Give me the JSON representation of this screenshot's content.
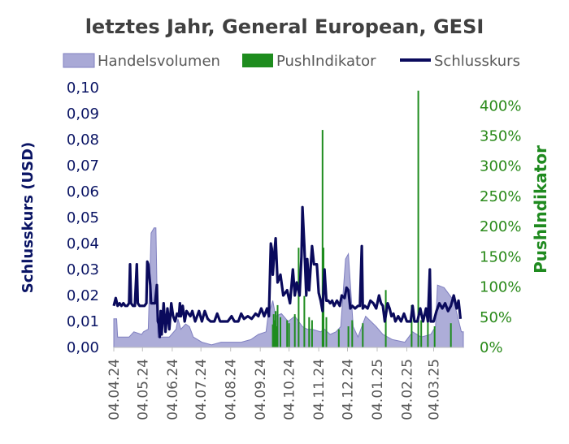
{
  "chart_data": {
    "type": "line",
    "title": "letztes Jahr, General European, GESI",
    "legend": {
      "placement": "top",
      "entries": [
        "Handelsvolumen",
        "PushIndikator",
        "Schlusskurs"
      ]
    },
    "colors": {
      "volume_fill": "#a9a9d6",
      "volume_stroke": "#8080c0",
      "push": "#1e8c1e",
      "close": "#0a0a5c",
      "left_axis_text": "#0a1464",
      "right_axis_text": "#2a8a1a"
    },
    "y_left": {
      "label": "Schlusskurs (USD)",
      "range": [
        0,
        0.1
      ],
      "ticks": [
        "0,00",
        "0,01",
        "0,02",
        "0,03",
        "0,04",
        "0,05",
        "0,06",
        "0,07",
        "0,08",
        "0,09",
        "0,10"
      ]
    },
    "y_right": {
      "label": "PushIndikator",
      "range": [
        0,
        4.3
      ],
      "ticks": [
        "0%",
        "50%",
        "100%",
        "150%",
        "200%",
        "250%",
        "300%",
        "350%",
        "400%"
      ]
    },
    "x_axis": {
      "range": [
        "2024-04-04",
        "2025-04-04"
      ],
      "ticks": [
        "04.04.24",
        "04.05.24",
        "04.06.24",
        "04.07.24",
        "04.08.24",
        "04.09.24",
        "04.10.24",
        "04.11.24",
        "04.12.24",
        "04.01.25",
        "04.02.25",
        "04.03.25"
      ]
    },
    "grid": false,
    "series": [
      {
        "name": "Handelsvolumen",
        "type": "area",
        "points": [
          [
            "2024-04-04",
            0.011
          ],
          [
            "2024-04-07",
            0.011
          ],
          [
            "2024-04-08",
            0.004
          ],
          [
            "2024-04-20",
            0.004
          ],
          [
            "2024-04-25",
            0.006
          ],
          [
            "2024-05-03",
            0.005
          ],
          [
            "2024-05-05",
            0.006
          ],
          [
            "2024-05-10",
            0.007
          ],
          [
            "2024-05-13",
            0.044
          ],
          [
            "2024-05-16",
            0.046
          ],
          [
            "2024-05-18",
            0.046
          ],
          [
            "2024-05-20",
            0.004
          ],
          [
            "2024-05-27",
            0.004
          ],
          [
            "2024-06-01",
            0.004
          ],
          [
            "2024-06-08",
            0.007
          ],
          [
            "2024-06-10",
            0.011
          ],
          [
            "2024-06-13",
            0.007
          ],
          [
            "2024-06-18",
            0.009
          ],
          [
            "2024-06-22",
            0.008
          ],
          [
            "2024-06-26",
            0.004
          ],
          [
            "2024-07-05",
            0.002
          ],
          [
            "2024-07-15",
            0.001
          ],
          [
            "2024-07-25",
            0.002
          ],
          [
            "2024-08-05",
            0.002
          ],
          [
            "2024-08-15",
            0.002
          ],
          [
            "2024-08-25",
            0.003
          ],
          [
            "2024-09-02",
            0.005
          ],
          [
            "2024-09-10",
            0.006
          ],
          [
            "2024-09-12",
            0.012
          ],
          [
            "2024-09-17",
            0.018
          ],
          [
            "2024-09-20",
            0.012
          ],
          [
            "2024-09-26",
            0.013
          ],
          [
            "2024-10-03",
            0.01
          ],
          [
            "2024-10-10",
            0.012
          ],
          [
            "2024-10-18",
            0.008
          ],
          [
            "2024-10-23",
            0.007
          ],
          [
            "2024-10-28",
            0.007
          ],
          [
            "2024-11-06",
            0.006
          ],
          [
            "2024-11-10",
            0.007
          ],
          [
            "2024-11-16",
            0.005
          ],
          [
            "2024-11-22",
            0.006
          ],
          [
            "2024-11-27",
            0.008
          ],
          [
            "2024-12-02",
            0.034
          ],
          [
            "2024-12-05",
            0.036
          ],
          [
            "2024-12-10",
            0.008
          ],
          [
            "2024-12-15",
            0.004
          ],
          [
            "2024-12-23",
            0.012
          ],
          [
            "2025-01-03",
            0.008
          ],
          [
            "2025-01-10",
            0.005
          ],
          [
            "2025-01-20",
            0.003
          ],
          [
            "2025-02-02",
            0.002
          ],
          [
            "2025-02-10",
            0.006
          ],
          [
            "2025-02-19",
            0.004
          ],
          [
            "2025-03-01",
            0.005
          ],
          [
            "2025-03-06",
            0.008
          ],
          [
            "2025-03-08",
            0.024
          ],
          [
            "2025-03-15",
            0.023
          ],
          [
            "2025-03-25",
            0.018
          ],
          [
            "2025-04-02",
            0.006
          ],
          [
            "2025-04-04",
            0.006
          ]
        ]
      },
      {
        "name": "PushIndikator",
        "type": "bar",
        "points": [
          [
            "2024-09-17",
            0.38
          ],
          [
            "2024-09-18",
            0.55
          ],
          [
            "2024-09-19",
            0.45
          ],
          [
            "2024-09-20",
            0.6
          ],
          [
            "2024-09-21",
            0.35
          ],
          [
            "2024-09-22",
            0.7
          ],
          [
            "2024-09-25",
            0.5
          ],
          [
            "2024-10-02",
            0.45
          ],
          [
            "2024-10-04",
            0.4
          ],
          [
            "2024-10-10",
            0.55
          ],
          [
            "2024-10-14",
            1.65
          ],
          [
            "2024-10-20",
            0.85
          ],
          [
            "2024-10-25",
            0.5
          ],
          [
            "2024-10-28",
            0.45
          ],
          [
            "2024-11-08",
            3.6
          ],
          [
            "2024-11-09",
            1.65
          ],
          [
            "2024-11-12",
            0.5
          ],
          [
            "2024-11-25",
            0.3
          ],
          [
            "2024-12-05",
            0.35
          ],
          [
            "2024-12-09",
            0.45
          ],
          [
            "2024-12-20",
            0.4
          ],
          [
            "2025-01-13",
            0.95
          ],
          [
            "2025-02-09",
            0.7
          ],
          [
            "2025-02-16",
            4.25
          ],
          [
            "2025-02-19",
            0.45
          ],
          [
            "2025-02-26",
            0.5
          ],
          [
            "2025-03-05",
            0.35
          ],
          [
            "2025-03-22",
            0.4
          ]
        ]
      },
      {
        "name": "Schlusskurs",
        "type": "line",
        "points": [
          [
            "2024-04-04",
            0.016
          ],
          [
            "2024-04-06",
            0.019
          ],
          [
            "2024-04-08",
            0.016
          ],
          [
            "2024-04-10",
            0.017
          ],
          [
            "2024-04-12",
            0.016
          ],
          [
            "2024-04-14",
            0.017
          ],
          [
            "2024-04-16",
            0.016
          ],
          [
            "2024-04-18",
            0.016
          ],
          [
            "2024-04-20",
            0.017
          ],
          [
            "2024-04-21",
            0.032
          ],
          [
            "2024-04-22",
            0.017
          ],
          [
            "2024-04-24",
            0.016
          ],
          [
            "2024-04-26",
            0.016
          ],
          [
            "2024-04-28",
            0.032
          ],
          [
            "2024-04-29",
            0.017
          ],
          [
            "2024-05-01",
            0.016
          ],
          [
            "2024-05-03",
            0.016
          ],
          [
            "2024-05-06",
            0.016
          ],
          [
            "2024-05-08",
            0.017
          ],
          [
            "2024-05-09",
            0.033
          ],
          [
            "2024-05-10",
            0.032
          ],
          [
            "2024-05-12",
            0.024
          ],
          [
            "2024-05-13",
            0.017
          ],
          [
            "2024-05-15",
            0.017
          ],
          [
            "2024-05-17",
            0.017
          ],
          [
            "2024-05-19",
            0.024
          ],
          [
            "2024-05-20",
            0.01
          ],
          [
            "2024-05-21",
            0.009
          ],
          [
            "2024-05-22",
            0.004
          ],
          [
            "2024-05-23",
            0.014
          ],
          [
            "2024-05-24",
            0.005
          ],
          [
            "2024-05-26",
            0.017
          ],
          [
            "2024-05-28",
            0.006
          ],
          [
            "2024-05-30",
            0.015
          ],
          [
            "2024-06-01",
            0.007
          ],
          [
            "2024-06-03",
            0.017
          ],
          [
            "2024-06-05",
            0.012
          ],
          [
            "2024-06-07",
            0.01
          ],
          [
            "2024-06-09",
            0.013
          ],
          [
            "2024-06-11",
            0.012
          ],
          [
            "2024-06-12",
            0.017
          ],
          [
            "2024-06-13",
            0.012
          ],
          [
            "2024-06-15",
            0.016
          ],
          [
            "2024-06-17",
            0.01
          ],
          [
            "2024-06-19",
            0.014
          ],
          [
            "2024-06-21",
            0.013
          ],
          [
            "2024-06-23",
            0.012
          ],
          [
            "2024-06-25",
            0.014
          ],
          [
            "2024-06-28",
            0.01
          ],
          [
            "2024-07-02",
            0.014
          ],
          [
            "2024-07-05",
            0.01
          ],
          [
            "2024-07-08",
            0.014
          ],
          [
            "2024-07-11",
            0.011
          ],
          [
            "2024-07-14",
            0.01
          ],
          [
            "2024-07-18",
            0.01
          ],
          [
            "2024-07-21",
            0.013
          ],
          [
            "2024-07-24",
            0.01
          ],
          [
            "2024-07-28",
            0.01
          ],
          [
            "2024-08-01",
            0.01
          ],
          [
            "2024-08-05",
            0.012
          ],
          [
            "2024-08-08",
            0.01
          ],
          [
            "2024-08-12",
            0.01
          ],
          [
            "2024-08-15",
            0.013
          ],
          [
            "2024-08-18",
            0.011
          ],
          [
            "2024-08-22",
            0.012
          ],
          [
            "2024-08-26",
            0.011
          ],
          [
            "2024-08-30",
            0.013
          ],
          [
            "2024-09-02",
            0.012
          ],
          [
            "2024-09-05",
            0.015
          ],
          [
            "2024-09-08",
            0.012
          ],
          [
            "2024-09-11",
            0.015
          ],
          [
            "2024-09-13",
            0.012
          ],
          [
            "2024-09-15",
            0.04
          ],
          [
            "2024-09-16",
            0.038
          ],
          [
            "2024-09-17",
            0.028
          ],
          [
            "2024-09-18",
            0.033
          ],
          [
            "2024-09-20",
            0.042
          ],
          [
            "2024-09-22",
            0.025
          ],
          [
            "2024-09-25",
            0.028
          ],
          [
            "2024-09-28",
            0.02
          ],
          [
            "2024-10-02",
            0.022
          ],
          [
            "2024-10-05",
            0.017
          ],
          [
            "2024-10-08",
            0.03
          ],
          [
            "2024-10-10",
            0.02
          ],
          [
            "2024-10-12",
            0.025
          ],
          [
            "2024-10-15",
            0.02
          ],
          [
            "2024-10-17",
            0.035
          ],
          [
            "2024-10-18",
            0.054
          ],
          [
            "2024-10-20",
            0.039
          ],
          [
            "2024-10-22",
            0.02
          ],
          [
            "2024-10-23",
            0.034
          ],
          [
            "2024-10-25",
            0.022
          ],
          [
            "2024-10-28",
            0.039
          ],
          [
            "2024-10-30",
            0.032
          ],
          [
            "2024-11-02",
            0.032
          ],
          [
            "2024-11-04",
            0.021
          ],
          [
            "2024-11-06",
            0.018
          ],
          [
            "2024-11-08",
            0.014
          ],
          [
            "2024-11-10",
            0.03
          ],
          [
            "2024-11-12",
            0.018
          ],
          [
            "2024-11-14",
            0.018
          ],
          [
            "2024-11-16",
            0.017
          ],
          [
            "2024-11-18",
            0.018
          ],
          [
            "2024-11-20",
            0.016
          ],
          [
            "2024-11-23",
            0.018
          ],
          [
            "2024-11-26",
            0.016
          ],
          [
            "2024-11-28",
            0.02
          ],
          [
            "2024-12-01",
            0.019
          ],
          [
            "2024-12-03",
            0.023
          ],
          [
            "2024-12-05",
            0.022
          ],
          [
            "2024-12-07",
            0.015
          ],
          [
            "2024-12-09",
            0.016
          ],
          [
            "2024-12-12",
            0.015
          ],
          [
            "2024-12-15",
            0.016
          ],
          [
            "2024-12-17",
            0.016
          ],
          [
            "2024-12-19",
            0.039
          ],
          [
            "2024-12-20",
            0.015
          ],
          [
            "2024-12-22",
            0.016
          ],
          [
            "2024-12-25",
            0.015
          ],
          [
            "2024-12-28",
            0.018
          ],
          [
            "2024-12-31",
            0.017
          ],
          [
            "2025-01-03",
            0.015
          ],
          [
            "2025-01-06",
            0.02
          ],
          [
            "2025-01-08",
            0.017
          ],
          [
            "2025-01-10",
            0.016
          ],
          [
            "2025-01-12",
            0.01
          ],
          [
            "2025-01-15",
            0.017
          ],
          [
            "2025-01-17",
            0.015
          ],
          [
            "2025-01-19",
            0.012
          ],
          [
            "2025-01-21",
            0.013
          ],
          [
            "2025-01-23",
            0.01
          ],
          [
            "2025-01-26",
            0.012
          ],
          [
            "2025-01-29",
            0.01
          ],
          [
            "2025-02-01",
            0.013
          ],
          [
            "2025-02-04",
            0.01
          ],
          [
            "2025-02-08",
            0.01
          ],
          [
            "2025-02-10",
            0.016
          ],
          [
            "2025-02-12",
            0.01
          ],
          [
            "2025-02-15",
            0.01
          ],
          [
            "2025-02-18",
            0.015
          ],
          [
            "2025-02-21",
            0.01
          ],
          [
            "2025-02-24",
            0.015
          ],
          [
            "2025-02-26",
            0.01
          ],
          [
            "2025-02-28",
            0.03
          ],
          [
            "2025-03-01",
            0.01
          ],
          [
            "2025-03-04",
            0.01
          ],
          [
            "2025-03-07",
            0.014
          ],
          [
            "2025-03-10",
            0.017
          ],
          [
            "2025-03-13",
            0.015
          ],
          [
            "2025-03-16",
            0.017
          ],
          [
            "2025-03-19",
            0.014
          ],
          [
            "2025-03-22",
            0.016
          ],
          [
            "2025-03-25",
            0.02
          ],
          [
            "2025-03-28",
            0.015
          ],
          [
            "2025-03-30",
            0.018
          ],
          [
            "2025-04-01",
            0.011
          ]
        ]
      }
    ]
  }
}
